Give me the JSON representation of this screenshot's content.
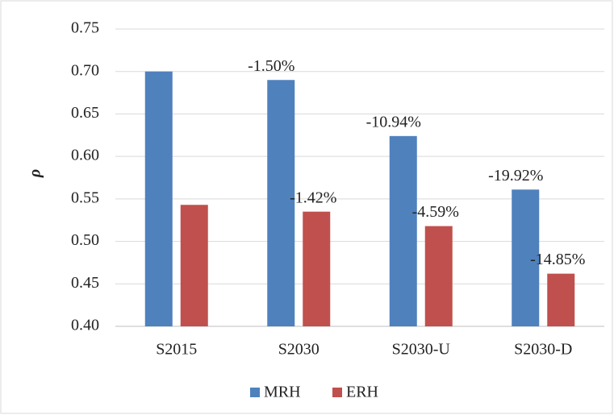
{
  "chart_data": {
    "type": "bar",
    "y_label": "ρ",
    "categories": [
      "S2015",
      "S2030",
      "S2030-U",
      "S2030-D"
    ],
    "series": [
      {
        "name": "MRH",
        "color": "#4f81bd",
        "values": [
          0.7,
          0.69,
          0.624,
          0.561
        ],
        "annotations": [
          null,
          "-1.50%",
          "-10.94%",
          "-19.92%"
        ]
      },
      {
        "name": "ERH",
        "color": "#c0504d",
        "values": [
          0.543,
          0.535,
          0.518,
          0.462
        ],
        "annotations": [
          null,
          "-1.42%",
          "-4.59%",
          "-14.85%"
        ]
      }
    ],
    "ylim": [
      0.4,
      0.75
    ],
    "yticks": [
      {
        "value": 0.4,
        "label": "0.40"
      },
      0.45,
      {
        "value": 0.5,
        "label": "0.50"
      },
      0.55,
      {
        "value": 0.6,
        "label": "0.60"
      },
      0.65,
      {
        "value": 0.7,
        "label": "0.70"
      },
      0.75
    ],
    "grid": true,
    "legend": "bottom"
  }
}
